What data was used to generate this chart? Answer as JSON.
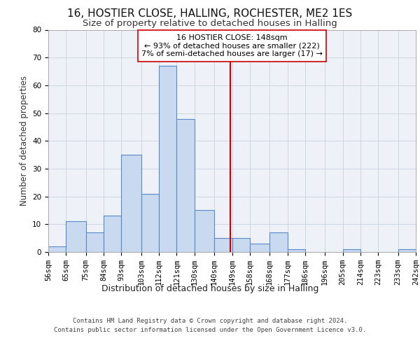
{
  "title1": "16, HOSTIER CLOSE, HALLING, ROCHESTER, ME2 1ES",
  "title2": "Size of property relative to detached houses in Halling",
  "xlabel": "Distribution of detached houses by size in Halling",
  "ylabel": "Number of detached properties",
  "bin_labels": [
    "56sqm",
    "65sqm",
    "75sqm",
    "84sqm",
    "93sqm",
    "103sqm",
    "112sqm",
    "121sqm",
    "130sqm",
    "140sqm",
    "149sqm",
    "158sqm",
    "168sqm",
    "177sqm",
    "186sqm",
    "196sqm",
    "205sqm",
    "214sqm",
    "223sqm",
    "233sqm",
    "242sqm"
  ],
  "bar_values": [
    2,
    11,
    7,
    13,
    35,
    21,
    67,
    48,
    15,
    5,
    5,
    3,
    7,
    1,
    0,
    0,
    1,
    0,
    0,
    1
  ],
  "bin_edges": [
    56,
    65,
    75,
    84,
    93,
    103,
    112,
    121,
    130,
    140,
    149,
    158,
    168,
    177,
    186,
    196,
    205,
    214,
    223,
    233,
    242
  ],
  "bar_color": "#c9d9f0",
  "bar_edge_color": "#5a8ac6",
  "property_line_x": 148,
  "property_line_color": "#cc0000",
  "annotation_text": "16 HOSTIER CLOSE: 148sqm\n← 93% of detached houses are smaller (222)\n7% of semi-detached houses are larger (17) →",
  "annotation_box_color": "#ffffff",
  "annotation_box_edge_color": "#cc0000",
  "grid_color": "#c8d0e0",
  "background_color": "#eef2f8",
  "ylim": [
    0,
    80
  ],
  "yticks": [
    0,
    10,
    20,
    30,
    40,
    50,
    60,
    70,
    80
  ],
  "footer_text": "Contains HM Land Registry data © Crown copyright and database right 2024.\nContains public sector information licensed under the Open Government Licence v3.0.",
  "title1_fontsize": 11,
  "title2_fontsize": 9.5,
  "xlabel_fontsize": 9,
  "ylabel_fontsize": 8.5,
  "annotation_fontsize": 8,
  "footer_fontsize": 6.5,
  "tick_fontsize": 7.5
}
